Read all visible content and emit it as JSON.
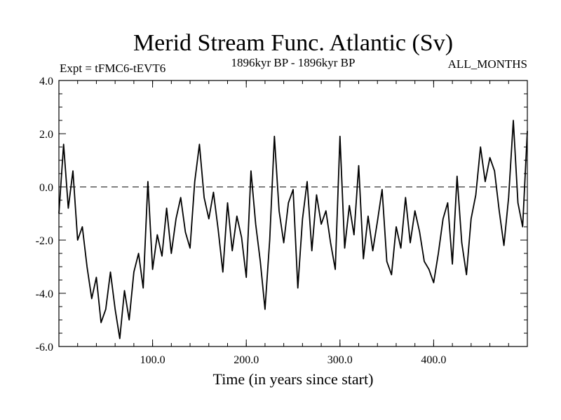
{
  "chart_data": {
    "type": "line",
    "title": "Merid Stream Func. Atlantic (Sv)",
    "subtitle_left": "Expt = tFMC6-tEVT6",
    "subtitle_center": "1896kyr BP - 1896kyr BP",
    "subtitle_right": "ALL_MONTHS",
    "xlabel": "Time (in years since start)",
    "ylabel": "",
    "xlim": [
      0,
      500
    ],
    "ylim": [
      -6,
      4
    ],
    "xticks": [
      100,
      200,
      300,
      400
    ],
    "xtick_labels": [
      "100.0",
      "200.0",
      "300.0",
      "400.0"
    ],
    "yticks": [
      4,
      2,
      0,
      -2,
      -4,
      -6
    ],
    "ytick_labels": [
      "4.0",
      "2.0",
      "0.0",
      "-2.0",
      "-4.0",
      "-6.0"
    ],
    "reference_line": {
      "y": 0,
      "style": "dashed"
    },
    "series": [
      {
        "name": "Merid Stream Func. Atlantic",
        "x": [
          0,
          5,
          10,
          15,
          20,
          25,
          30,
          35,
          40,
          45,
          50,
          55,
          60,
          65,
          70,
          75,
          80,
          85,
          90,
          95,
          100,
          105,
          110,
          115,
          120,
          125,
          130,
          135,
          140,
          145,
          150,
          155,
          160,
          165,
          170,
          175,
          180,
          185,
          190,
          195,
          200,
          205,
          210,
          215,
          220,
          225,
          230,
          235,
          240,
          245,
          250,
          255,
          260,
          265,
          270,
          275,
          280,
          285,
          290,
          295,
          300,
          305,
          310,
          315,
          320,
          325,
          330,
          335,
          340,
          345,
          350,
          355,
          360,
          365,
          370,
          375,
          380,
          385,
          390,
          395,
          400,
          405,
          410,
          415,
          420,
          425,
          430,
          435,
          440,
          445,
          450,
          455,
          460,
          465,
          470,
          475,
          480,
          485,
          490,
          495,
          500
        ],
        "values": [
          -1.0,
          1.6,
          -0.8,
          0.6,
          -2.0,
          -1.5,
          -3.0,
          -4.2,
          -3.4,
          -5.1,
          -4.6,
          -3.2,
          -4.6,
          -5.7,
          -3.9,
          -5.0,
          -3.2,
          -2.5,
          -3.8,
          0.2,
          -3.1,
          -1.8,
          -2.6,
          -0.8,
          -2.5,
          -1.2,
          -0.4,
          -1.7,
          -2.3,
          0.2,
          1.6,
          -0.4,
          -1.2,
          -0.2,
          -1.6,
          -3.2,
          -0.6,
          -2.4,
          -1.1,
          -1.9,
          -3.4,
          0.6,
          -1.4,
          -2.8,
          -4.6,
          -2.0,
          1.9,
          -0.9,
          -2.1,
          -0.6,
          -0.1,
          -3.8,
          -1.2,
          0.2,
          -2.4,
          -0.3,
          -1.4,
          -0.9,
          -2.1,
          -3.1,
          1.9,
          -2.3,
          -0.7,
          -1.8,
          0.8,
          -2.7,
          -1.1,
          -2.4,
          -1.3,
          -0.1,
          -2.8,
          -3.3,
          -1.5,
          -2.3,
          -0.4,
          -2.1,
          -0.9,
          -1.7,
          -2.8,
          -3.1,
          -3.6,
          -2.5,
          -1.2,
          -0.6,
          -2.9,
          0.4,
          -2.1,
          -3.3,
          -1.2,
          -0.3,
          1.5,
          0.2,
          1.1,
          0.6,
          -0.9,
          -2.2,
          -0.4,
          2.5,
          -0.6,
          -1.5,
          2.1
        ]
      }
    ],
    "colors": {
      "line": "#000000",
      "axes": "#000000",
      "background": "#ffffff"
    }
  }
}
